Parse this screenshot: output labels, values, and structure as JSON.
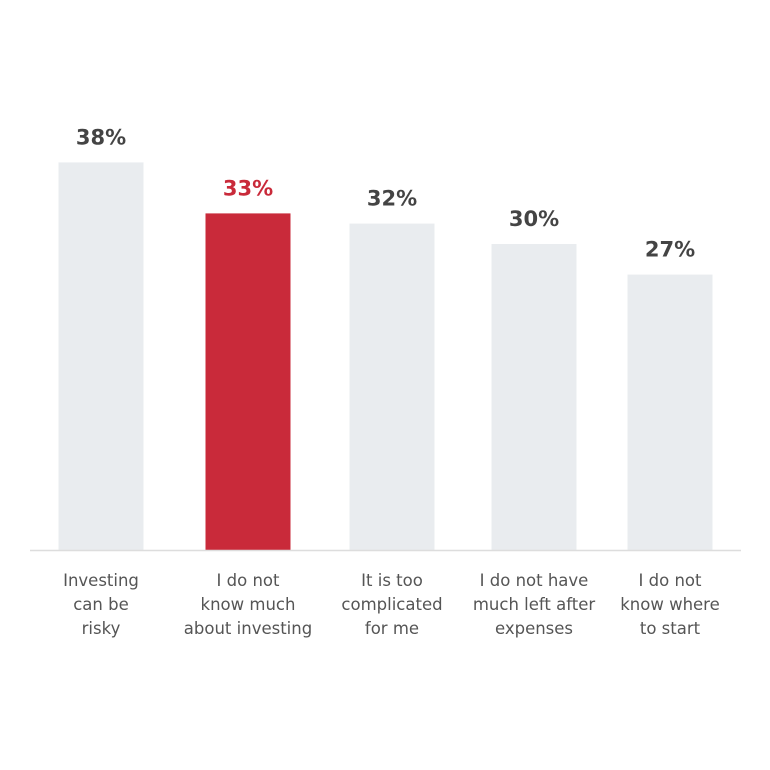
{
  "chart_data": {
    "type": "bar",
    "categories": [
      [
        "Investing",
        "can be",
        "risky"
      ],
      [
        "I do not",
        "know much",
        "about investing"
      ],
      [
        "It is too",
        "complicated",
        "for me"
      ],
      [
        "I do not have",
        "much left after",
        "expenses"
      ],
      [
        "I do not",
        "know where",
        "to start"
      ]
    ],
    "values": [
      38,
      33,
      32,
      30,
      27
    ],
    "value_labels": [
      "38%",
      "33%",
      "32%",
      "30%",
      "27%"
    ],
    "colors": [
      "#e9ecef",
      "#c92a3a",
      "#e9ecef",
      "#e9ecef",
      "#e9ecef"
    ],
    "label_colors": [
      "#444444",
      "#c92a3a",
      "#444444",
      "#444444",
      "#444444"
    ]
  }
}
